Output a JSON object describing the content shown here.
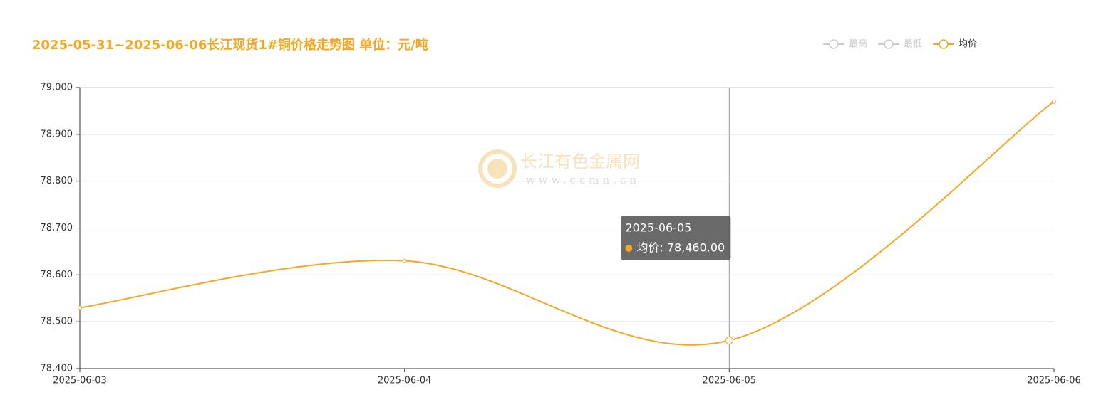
{
  "chart_data": {
    "type": "line",
    "title": "2025-05-31~2025-06-06长江现货1#铜价格走势图 单位：元/吨",
    "categories": [
      "2025-06-03",
      "2025-06-04",
      "2025-06-05",
      "2025-06-06"
    ],
    "series": [
      {
        "name": "最高",
        "color": "#cccccc",
        "visible": false,
        "values": [
          null,
          null,
          null,
          null
        ]
      },
      {
        "name": "最低",
        "color": "#cccccc",
        "visible": false,
        "values": [
          null,
          null,
          null,
          null
        ]
      },
      {
        "name": "均价",
        "color": "#f5a623",
        "visible": true,
        "values": [
          78530,
          78630,
          78460,
          78970
        ]
      }
    ],
    "ylim": [
      78400,
      79000
    ],
    "yticks": [
      {
        "value": 78400,
        "label": "78,400"
      },
      {
        "value": 78500,
        "label": "78,500"
      },
      {
        "value": 78600,
        "label": "78,600"
      },
      {
        "value": 78700,
        "label": "78,700"
      },
      {
        "value": 78800,
        "label": "78,800"
      },
      {
        "value": 78900,
        "label": "78,900"
      },
      {
        "value": 79000,
        "label": "79,000"
      }
    ],
    "grid": true,
    "smooth": true,
    "legend_position": "top-right",
    "tooltip": {
      "category_index": 2,
      "series_index": 2,
      "label": "均价: 78,460.00"
    },
    "watermark": {
      "name": "长江有色金属网",
      "url": "www.ccmn.cn"
    }
  }
}
